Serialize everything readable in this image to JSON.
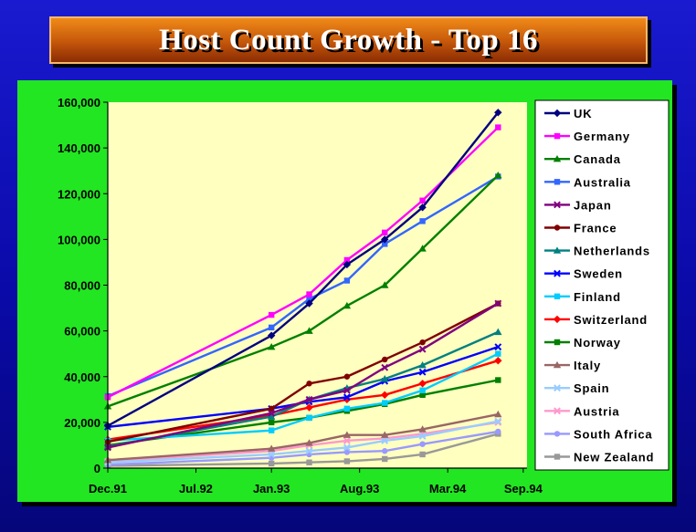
{
  "title": "Host Count Growth - Top 16",
  "chart_data": {
    "type": "line",
    "title": "Host Count Growth - Top 16",
    "xlabel": "",
    "ylabel": "",
    "x_tick_labels": [
      "Dec.91",
      "Jul.92",
      "Jan.93",
      "Aug.93",
      "Mar.94",
      "Sep.94"
    ],
    "y_tick_labels": [
      "0",
      "20,000",
      "40,000",
      "60,000",
      "80,000",
      "100,000",
      "120,000",
      "140,000",
      "160,000"
    ],
    "ylim": [
      0,
      160000
    ],
    "x": [
      "Dec.91",
      "Oct.92",
      "Jan.93",
      "Apr.93",
      "Jul.93",
      "Oct.93",
      "Jan.94",
      "Apr.94",
      "Jul.94"
    ],
    "grid": false,
    "legend": "right",
    "series": [
      {
        "name": "UK",
        "color": "#000080",
        "marker": "diamond",
        "values": [
          18500,
          null,
          58000,
          72000,
          89000,
          100000,
          114000,
          null,
          155500
        ]
      },
      {
        "name": "Germany",
        "color": "#ff00ff",
        "marker": "square",
        "values": [
          31000,
          null,
          67000,
          76000,
          91000,
          103000,
          117000,
          null,
          149000
        ]
      },
      {
        "name": "Canada",
        "color": "#008000",
        "marker": "triangle",
        "values": [
          27000,
          null,
          53000,
          60000,
          71000,
          80000,
          96000,
          null,
          128000
        ]
      },
      {
        "name": "Australia",
        "color": "#3366ff",
        "marker": "square",
        "values": [
          31500,
          null,
          61500,
          74000,
          82000,
          98000,
          108000,
          null,
          127500
        ]
      },
      {
        "name": "Japan",
        "color": "#800080",
        "marker": "x",
        "values": [
          9000,
          null,
          24000,
          30000,
          34000,
          44000,
          52000,
          null,
          72000
        ]
      },
      {
        "name": "France",
        "color": "#800000",
        "marker": "circle",
        "values": [
          11500,
          null,
          26000,
          37000,
          40000,
          47500,
          55000,
          null,
          72000
        ]
      },
      {
        "name": "Netherlands",
        "color": "#008080",
        "marker": "triangle",
        "values": [
          9500,
          null,
          22500,
          30000,
          35000,
          39000,
          45000,
          null,
          59500
        ]
      },
      {
        "name": "Sweden",
        "color": "#0000ff",
        "marker": "x",
        "values": [
          18000,
          null,
          26000,
          29000,
          31000,
          38000,
          42000,
          null,
          53000
        ]
      },
      {
        "name": "Finland",
        "color": "#00ccff",
        "marker": "square",
        "values": [
          12000,
          null,
          16500,
          22000,
          26000,
          28500,
          34000,
          null,
          50000
        ]
      },
      {
        "name": "Switzerland",
        "color": "#ff0000",
        "marker": "diamond",
        "values": [
          12500,
          null,
          23000,
          26500,
          30000,
          32000,
          37000,
          null,
          47000
        ]
      },
      {
        "name": "Norway",
        "color": "#008000",
        "marker": "square",
        "values": [
          10000,
          null,
          20000,
          22000,
          25000,
          28000,
          32000,
          null,
          38500
        ]
      },
      {
        "name": "Italy",
        "color": "#996666",
        "marker": "triangle",
        "values": [
          3500,
          null,
          8500,
          11000,
          14500,
          14500,
          17000,
          null,
          23500
        ]
      },
      {
        "name": "Spain",
        "color": "#99ccff",
        "marker": "x",
        "values": [
          2500,
          null,
          6000,
          7500,
          9000,
          12000,
          14000,
          null,
          20500
        ]
      },
      {
        "name": "Austria",
        "color": "#ff99cc",
        "marker": "x",
        "values": [
          3000,
          null,
          7500,
          10000,
          12000,
          13000,
          15000,
          null,
          20000
        ]
      },
      {
        "name": "South Africa",
        "color": "#9999ff",
        "marker": "circle",
        "values": [
          1500,
          null,
          4500,
          6000,
          7000,
          7500,
          10500,
          null,
          16000
        ]
      },
      {
        "name": "New Zealand",
        "color": "#999999",
        "marker": "square",
        "values": [
          1000,
          null,
          2000,
          2500,
          3000,
          4000,
          6000,
          null,
          15000
        ]
      }
    ]
  }
}
